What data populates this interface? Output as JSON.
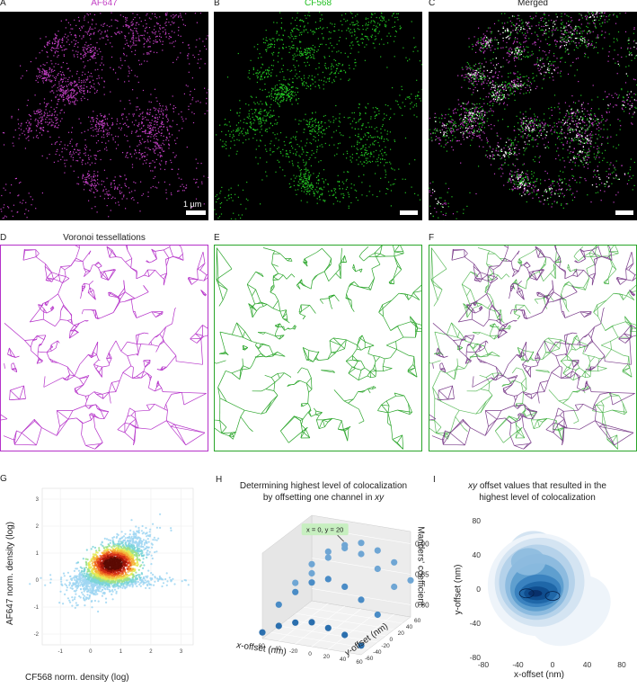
{
  "panels": {
    "A": {
      "letter": "A",
      "title": "AF647",
      "color": "#c23fc4",
      "scalebar": "1 µm"
    },
    "B": {
      "letter": "B",
      "title": "CF568",
      "color": "#22c022"
    },
    "C": {
      "letter": "C",
      "title": "Merged"
    },
    "D": {
      "letter": "D",
      "title": "Voronoi tessellations",
      "color": "#b531c9"
    },
    "E": {
      "letter": "E",
      "color": "#2aa52a"
    },
    "F": {
      "letter": "F"
    },
    "G": {
      "letter": "G",
      "xlabel": "CF568 norm. density (log)",
      "ylabel": "AF647 norm. density (log)",
      "xticks": [
        "-1",
        "0",
        "1",
        "2",
        "3"
      ],
      "yticks": [
        "3",
        "2",
        "1",
        "0",
        "-1",
        "-2"
      ]
    },
    "H": {
      "letter": "H",
      "title_line1": "Determining highest level of colocalization",
      "title_line2_prefix": "by offsetting one channel in ",
      "title_line2_italic": "xy",
      "callout": "x = 0, y = 20",
      "xlabel_italic": "x",
      "xlabel_rest": "-offset (nm)",
      "ylabel_italic": "y",
      "ylabel_rest": "-offset (nm)",
      "zlabel": "Manders' coefficient",
      "xticks": [
        "-60",
        "-40",
        "-20",
        "0",
        "20",
        "40",
        "60"
      ],
      "yticks": [
        "-60",
        "-40",
        "-20",
        "0",
        "20",
        "40",
        "60"
      ],
      "zticks": [
        "0.90",
        "0.85",
        "0.80"
      ]
    },
    "I": {
      "letter": "I",
      "title_line1_italic": "xy",
      "title_line1_rest": " offset values that resulted in the",
      "title_line2": "highest level of colocalization",
      "xlabel": "x-offset (nm)",
      "ylabel": "y-offset (nm)",
      "xticks": [
        "-80",
        "-40",
        "0",
        "40",
        "80"
      ],
      "yticks": [
        "80",
        "40",
        "0",
        "-40",
        "-80"
      ]
    }
  },
  "chart_data": [
    {
      "type": "scatter",
      "panel": "H",
      "title": "Determining highest level of colocalization by offsetting one channel in xy",
      "xlabel": "x-offset (nm)",
      "ylabel": "y-offset (nm)",
      "zlabel": "Manders' coefficient",
      "xlim": [
        -60,
        60
      ],
      "ylim": [
        -60,
        60
      ],
      "zlim": [
        0.78,
        0.92
      ],
      "annotation": "x = 0, y = 20",
      "points": [
        {
          "x": -60,
          "y": -60,
          "z": 0.79
        },
        {
          "x": -40,
          "y": -60,
          "z": 0.805
        },
        {
          "x": -20,
          "y": -60,
          "z": 0.815
        },
        {
          "x": 0,
          "y": -60,
          "z": 0.82
        },
        {
          "x": 20,
          "y": -60,
          "z": 0.815
        },
        {
          "x": 40,
          "y": -60,
          "z": 0.808
        },
        {
          "x": 60,
          "y": -60,
          "z": 0.795
        },
        {
          "x": -60,
          "y": -20,
          "z": 0.815
        },
        {
          "x": -40,
          "y": -20,
          "z": 0.84
        },
        {
          "x": -20,
          "y": -20,
          "z": 0.86
        },
        {
          "x": 0,
          "y": -20,
          "z": 0.87
        },
        {
          "x": 20,
          "y": -20,
          "z": 0.862
        },
        {
          "x": 40,
          "y": -20,
          "z": 0.845
        },
        {
          "x": 60,
          "y": -20,
          "z": 0.825
        },
        {
          "x": -60,
          "y": 20,
          "z": 0.83
        },
        {
          "x": -40,
          "y": 20,
          "z": 0.865
        },
        {
          "x": -20,
          "y": 20,
          "z": 0.89
        },
        {
          "x": 0,
          "y": 20,
          "z": 0.905
        },
        {
          "x": 20,
          "y": 20,
          "z": 0.895
        },
        {
          "x": 40,
          "y": 20,
          "z": 0.875
        },
        {
          "x": 60,
          "y": 20,
          "z": 0.85
        },
        {
          "x": -60,
          "y": 60,
          "z": 0.825
        },
        {
          "x": -40,
          "y": 60,
          "z": 0.855
        },
        {
          "x": -20,
          "y": 60,
          "z": 0.875
        },
        {
          "x": 0,
          "y": 60,
          "z": 0.888
        },
        {
          "x": 20,
          "y": 60,
          "z": 0.88
        },
        {
          "x": 40,
          "y": 60,
          "z": 0.865
        },
        {
          "x": 60,
          "y": 60,
          "z": 0.84
        }
      ]
    },
    {
      "type": "heatmap",
      "panel": "I",
      "title": "xy offset values that resulted in the highest level of colocalization",
      "xlabel": "x-offset (nm)",
      "ylabel": "y-offset (nm)",
      "xlim": [
        -80,
        80
      ],
      "ylim": [
        -80,
        80
      ],
      "density_peaks": [
        {
          "x": -30,
          "y": -5,
          "weight": 1.0
        },
        {
          "x": 0,
          "y": -8,
          "weight": 1.0
        },
        {
          "x": -25,
          "y": 30,
          "weight": 0.55
        },
        {
          "x": 30,
          "y": -30,
          "weight": 0.4
        }
      ],
      "colors": [
        "#eef4fa",
        "#d4e4f2",
        "#b5d2ea",
        "#8dbbdf",
        "#5f9fcf",
        "#3a82bf",
        "#1f67a8",
        "#0f4d8e",
        "#08306b"
      ]
    }
  ]
}
